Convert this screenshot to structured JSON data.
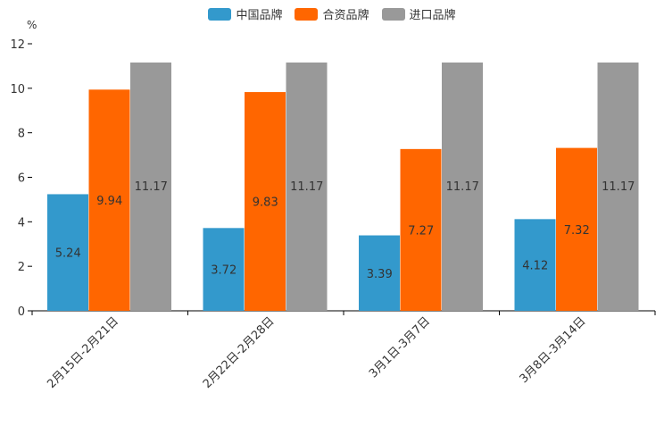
{
  "chart_data": {
    "type": "bar",
    "unit": "%",
    "categories": [
      "2月15日-2月21日",
      "2月22日-2月28日",
      "3月1日-3月7日",
      "3月8日-3月14日"
    ],
    "series": [
      {
        "name": "中国品牌",
        "color": "#3399cc",
        "values": [
          5.24,
          3.72,
          3.39,
          4.12
        ],
        "labels": [
          "5.24",
          "3.72",
          "3.39",
          "4.12"
        ]
      },
      {
        "name": "合资品牌",
        "color": "#ff6600",
        "values": [
          9.94,
          9.83,
          7.27,
          7.32
        ],
        "labels": [
          "9.94",
          "9.83",
          "7.27",
          "7.32"
        ]
      },
      {
        "name": "进口品牌",
        "color": "#999999",
        "values": [
          11.17,
          11.17,
          11.17,
          11.17
        ],
        "labels": [
          "11.17",
          "11.17",
          "11.17",
          "11.17"
        ]
      }
    ],
    "ylim": [
      0,
      12
    ],
    "yticks": [
      "0",
      "2",
      "4",
      "6",
      "8",
      "10",
      "12"
    ],
    "legend": "top-center"
  }
}
